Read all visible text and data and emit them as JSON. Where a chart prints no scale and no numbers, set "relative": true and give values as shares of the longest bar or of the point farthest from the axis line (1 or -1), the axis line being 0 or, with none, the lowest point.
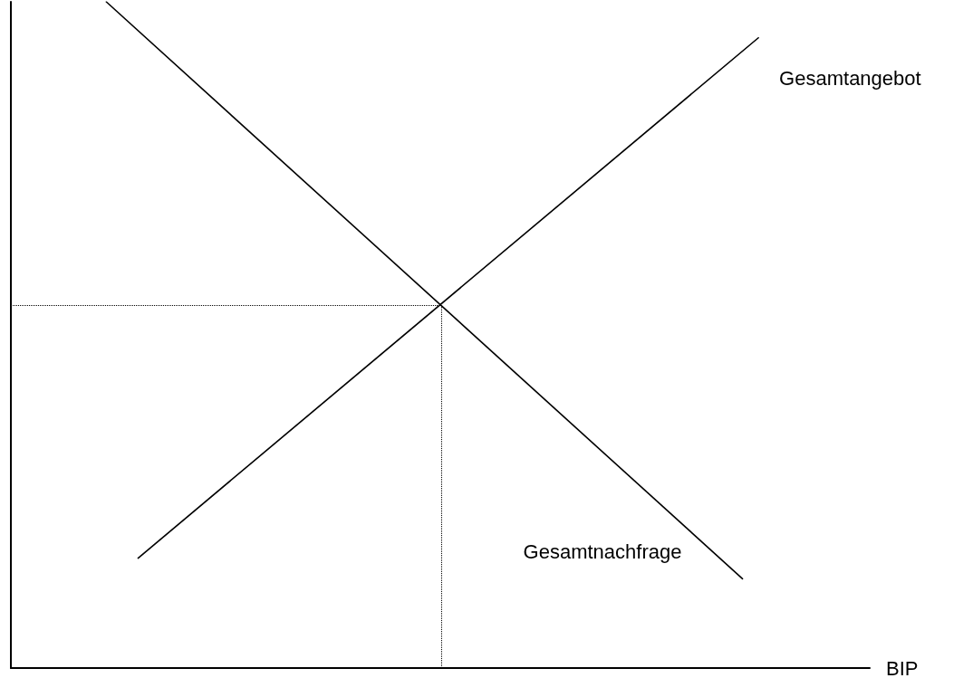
{
  "chart_data": {
    "type": "line",
    "relative": true,
    "xlabel": "BIP",
    "grid": false,
    "legend": false,
    "marker": "none",
    "line_style": "solid",
    "categories": [
      null,
      null,
      null,
      null,
      null,
      null,
      null,
      null,
      null,
      null,
      null,
      null,
      null,
      null,
      null,
      null,
      null,
      null,
      null,
      null,
      null,
      null,
      null,
      null,
      null,
      null,
      null,
      null,
      null,
      null,
      null,
      null,
      null,
      null,
      null,
      null,
      null,
      null,
      null,
      null,
      null,
      null,
      null,
      null,
      null,
      null,
      null,
      null,
      null,
      null,
      null,
      null,
      null,
      null,
      null
    ],
    "series": [
      {
        "name": "Gesamtnachfrage",
        "color": "#000000",
        "values": [
          null,
          null,
          null,
          null,
          null,
          null,
          1,
          null,
          null,
          null,
          null,
          null,
          null,
          null,
          null,
          null,
          null,
          null,
          null,
          null,
          null,
          null,
          null,
          null,
          null,
          null,
          null,
          null,
          null,
          null,
          null,
          null,
          null,
          null,
          null,
          null,
          null,
          null,
          null,
          null,
          null,
          null,
          null,
          null,
          null,
          null,
          0.134,
          null,
          null,
          null,
          null,
          null,
          null,
          null,
          null
        ]
      },
      {
        "name": "Gesamtangebot",
        "color": "#000000",
        "values": [
          null,
          null,
          null,
          null,
          null,
          null,
          null,
          null,
          0.165,
          null,
          null,
          null,
          null,
          null,
          null,
          null,
          null,
          null,
          null,
          null,
          null,
          null,
          null,
          null,
          null,
          null,
          null,
          null,
          null,
          null,
          null,
          null,
          null,
          null,
          null,
          null,
          null,
          null,
          null,
          null,
          null,
          null,
          null,
          null,
          null,
          null,
          null,
          0.946,
          null,
          null,
          null,
          null,
          null,
          null,
          null
        ]
      }
    ],
    "ref_lines": [
      {
        "axis": "y",
        "value": 0.544,
        "line_style": "dotted",
        "color": "#000000"
      }
    ]
  }
}
